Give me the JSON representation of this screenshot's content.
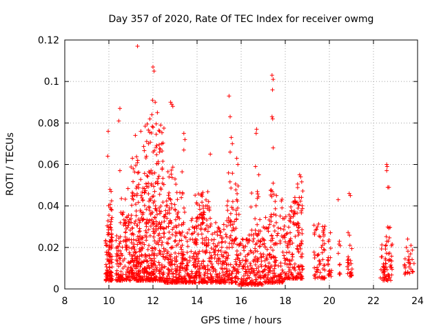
{
  "chart_data": {
    "type": "scatter",
    "title": "Day 357 of 2020, Rate Of TEC Index for receiver owmg",
    "xlabel": "GPS time / hours",
    "ylabel": "ROTI / TECUs",
    "xlim": [
      8,
      24
    ],
    "ylim": [
      0,
      0.12
    ],
    "x_ticks": [
      8,
      10,
      12,
      14,
      16,
      18,
      20,
      22,
      24
    ],
    "x_tick_labels": [
      "8",
      "10",
      "12",
      "14",
      "16",
      "18",
      "20",
      "22",
      "24"
    ],
    "y_ticks": [
      0,
      0.02,
      0.04,
      0.06,
      0.08,
      0.1,
      0.12
    ],
    "y_tick_labels": [
      "0",
      "0.02",
      "0.04",
      "0.06",
      "0.08",
      "0.1",
      "0.12"
    ],
    "grid": true,
    "marker": "plus",
    "color": "#ff0000",
    "outliers": [
      [
        9.97,
        0.076
      ],
      [
        9.95,
        0.064
      ],
      [
        10.05,
        0.048
      ],
      [
        10.1,
        0.047
      ],
      [
        10.5,
        0.087
      ],
      [
        10.45,
        0.081
      ],
      [
        10.5,
        0.057
      ],
      [
        11.3,
        0.117
      ],
      [
        11.2,
        0.074
      ],
      [
        11.45,
        0.076
      ],
      [
        11.7,
        0.064
      ],
      [
        11.8,
        0.07
      ],
      [
        11.95,
        0.084
      ],
      [
        11.98,
        0.091
      ],
      [
        12.0,
        0.107
      ],
      [
        12.05,
        0.105
      ],
      [
        12.1,
        0.09
      ],
      [
        12.2,
        0.085
      ],
      [
        12.3,
        0.076
      ],
      [
        12.35,
        0.079
      ],
      [
        12.3,
        0.066
      ],
      [
        12.4,
        0.07
      ],
      [
        12.8,
        0.09
      ],
      [
        12.85,
        0.089
      ],
      [
        12.9,
        0.088
      ],
      [
        13.4,
        0.075
      ],
      [
        13.45,
        0.072
      ],
      [
        13.4,
        0.067
      ],
      [
        14.6,
        0.065
      ],
      [
        15.45,
        0.093
      ],
      [
        15.5,
        0.083
      ],
      [
        15.55,
        0.073
      ],
      [
        15.6,
        0.07
      ],
      [
        15.5,
        0.066
      ],
      [
        15.8,
        0.063
      ],
      [
        15.85,
        0.06
      ],
      [
        16.7,
        0.077
      ],
      [
        16.68,
        0.075
      ],
      [
        16.65,
        0.059
      ],
      [
        16.8,
        0.055
      ],
      [
        17.4,
        0.103
      ],
      [
        17.45,
        0.101
      ],
      [
        17.42,
        0.096
      ],
      [
        17.4,
        0.083
      ],
      [
        17.43,
        0.082
      ],
      [
        17.45,
        0.068
      ],
      [
        17.45,
        0.051
      ],
      [
        17.6,
        0.045
      ],
      [
        18.65,
        0.055
      ],
      [
        18.7,
        0.054
      ],
      [
        20.4,
        0.043
      ],
      [
        20.9,
        0.046
      ],
      [
        20.95,
        0.045
      ],
      [
        22.6,
        0.06
      ],
      [
        22.62,
        0.059
      ],
      [
        22.6,
        0.057
      ],
      [
        22.65,
        0.049
      ],
      [
        22.7,
        0.049
      ],
      [
        23.55,
        0.024
      ],
      [
        23.7,
        0.021
      ]
    ],
    "clusters": [
      {
        "x": [
          9.85,
          10.15
        ],
        "y": [
          0.004,
          0.025
        ],
        "n": 90
      },
      {
        "x": [
          9.9,
          10.15
        ],
        "y": [
          0.025,
          0.045
        ],
        "n": 25
      },
      {
        "x": [
          10.3,
          10.95
        ],
        "y": [
          0.004,
          0.034
        ],
        "n": 110
      },
      {
        "x": [
          10.5,
          10.9
        ],
        "y": [
          0.03,
          0.05
        ],
        "n": 15
      },
      {
        "x": [
          10.95,
          11.6
        ],
        "y": [
          0.004,
          0.045
        ],
        "n": 170
      },
      {
        "x": [
          11.0,
          11.6
        ],
        "y": [
          0.045,
          0.07
        ],
        "n": 25
      },
      {
        "x": [
          11.6,
          12.5
        ],
        "y": [
          0.004,
          0.05
        ],
        "n": 250
      },
      {
        "x": [
          11.6,
          12.5
        ],
        "y": [
          0.05,
          0.082
        ],
        "n": 55
      },
      {
        "x": [
          12.5,
          13.5
        ],
        "y": [
          0.003,
          0.04
        ],
        "n": 220
      },
      {
        "x": [
          12.6,
          13.4
        ],
        "y": [
          0.04,
          0.06
        ],
        "n": 25
      },
      {
        "x": [
          13.5,
          14.7
        ],
        "y": [
          0.003,
          0.034
        ],
        "n": 220
      },
      {
        "x": [
          13.9,
          14.6
        ],
        "y": [
          0.034,
          0.047
        ],
        "n": 40
      },
      {
        "x": [
          14.7,
          15.8
        ],
        "y": [
          0.003,
          0.032
        ],
        "n": 190
      },
      {
        "x": [
          15.3,
          15.9
        ],
        "y": [
          0.032,
          0.058
        ],
        "n": 30
      },
      {
        "x": [
          15.8,
          17.0
        ],
        "y": [
          0.002,
          0.026
        ],
        "n": 190
      },
      {
        "x": [
          16.4,
          16.9
        ],
        "y": [
          0.026,
          0.048
        ],
        "n": 20
      },
      {
        "x": [
          17.0,
          18.0
        ],
        "y": [
          0.003,
          0.036
        ],
        "n": 170
      },
      {
        "x": [
          17.3,
          17.9
        ],
        "y": [
          0.036,
          0.048
        ],
        "n": 12
      },
      {
        "x": [
          18.0,
          18.8
        ],
        "y": [
          0.005,
          0.042
        ],
        "n": 150
      },
      {
        "x": [
          18.4,
          18.8
        ],
        "y": [
          0.042,
          0.053
        ],
        "n": 10
      },
      {
        "x": [
          19.3,
          19.8
        ],
        "y": [
          0.005,
          0.032
        ],
        "n": 60
      },
      {
        "x": [
          19.9,
          20.1
        ],
        "y": [
          0.006,
          0.028
        ],
        "n": 20
      },
      {
        "x": [
          20.4,
          20.5
        ],
        "y": [
          0.006,
          0.023
        ],
        "n": 10
      },
      {
        "x": [
          20.8,
          21.05
        ],
        "y": [
          0.006,
          0.03
        ],
        "n": 25
      },
      {
        "x": [
          22.3,
          22.85
        ],
        "y": [
          0.004,
          0.03
        ],
        "n": 70
      },
      {
        "x": [
          23.4,
          23.85
        ],
        "y": [
          0.007,
          0.02
        ],
        "n": 30
      }
    ]
  }
}
